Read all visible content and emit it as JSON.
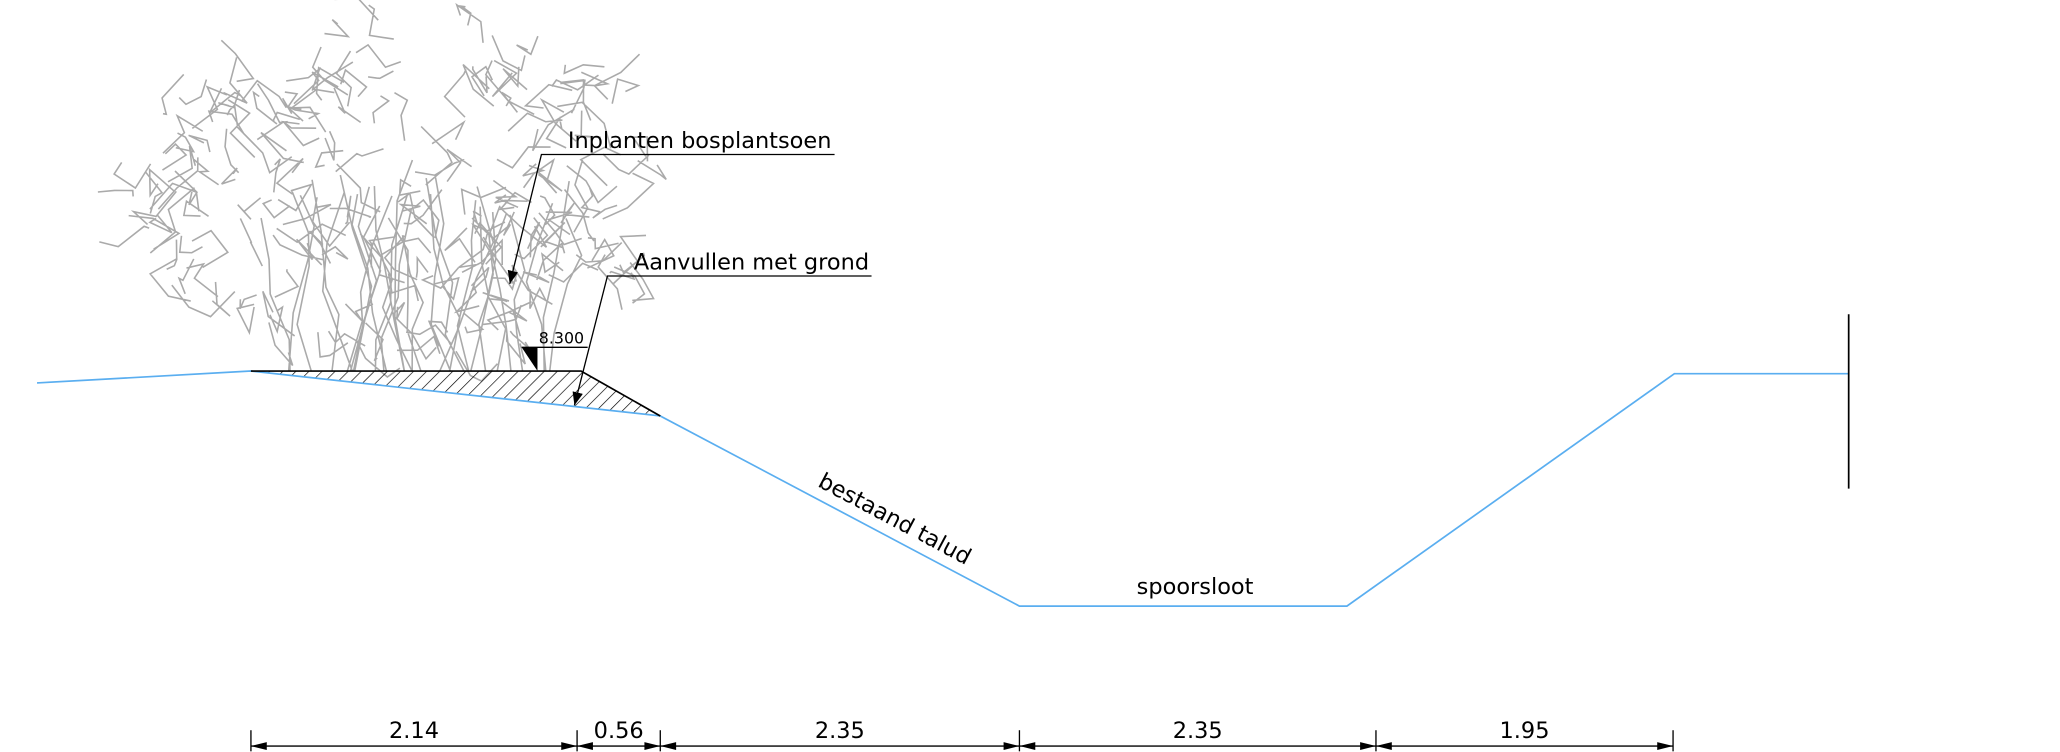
{
  "labels": {
    "planting": "Inplanten bosplantsoen",
    "fill": "Aanvullen met grond",
    "level": "8.300",
    "slope": "bestaand talud",
    "ditch": "spoorsloot"
  },
  "dimensions": [
    "2.14",
    "0.56",
    "2.35",
    "2.35",
    "1.95"
  ]
}
